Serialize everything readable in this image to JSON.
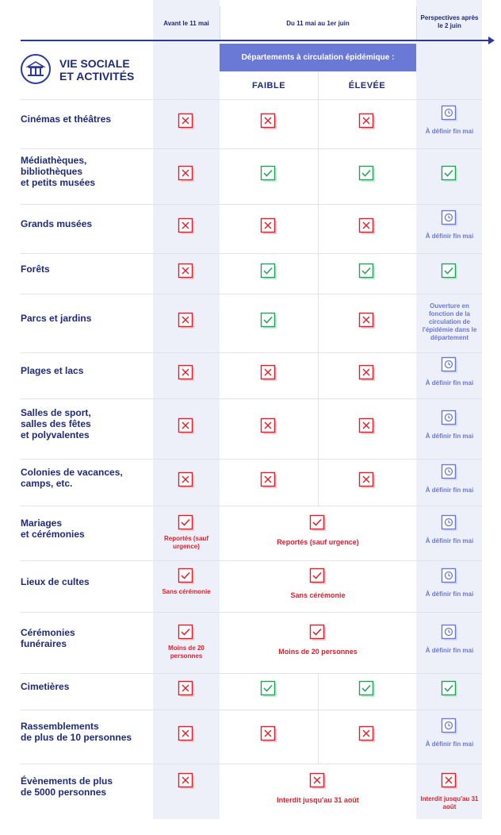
{
  "header": {
    "col_avant": "Avant le 11 mai",
    "col_du": "Du 11 mai au 1er juin",
    "col_persp": "Perspectives après le 2 juin",
    "dept_band": "Départements à circulation épidémique :",
    "faible": "FAIBLE",
    "elevee": "ÉLEVÉE"
  },
  "section": {
    "title_line1": "VIE SOCIALE",
    "title_line2": "ET ACTIVITÉS",
    "icon": "building-icon"
  },
  "colors": {
    "navy": "#1f2a7a",
    "red": "#e11d2b",
    "green": "#1fa35a",
    "lavender": "#6a78d6",
    "col_bg": "#eef0f9"
  },
  "rows": [
    {
      "label": "Cinémas et théâtres",
      "avant": "cross",
      "faible": "cross",
      "elevee": "cross",
      "persp": "clock",
      "persp_note": "À définir fin mai"
    },
    {
      "label": "Médiathèques,\nbibliothèques\net petits musées",
      "avant": "cross",
      "faible": "check",
      "elevee": "check",
      "persp": "check"
    },
    {
      "label": "Grands musées",
      "avant": "cross",
      "faible": "cross",
      "elevee": "cross",
      "persp": "clock",
      "persp_note": "À définir fin mai"
    },
    {
      "label": "Forêts",
      "avant": "cross",
      "faible": "check",
      "elevee": "check",
      "persp": "check"
    },
    {
      "label": "Parcs et jardins",
      "avant": "cross",
      "faible": "check",
      "elevee": "cross",
      "persp": "none",
      "persp_note": "Ouverture en fonction de la circulation de l'épidémie dans le département"
    },
    {
      "label": "Plages et lacs",
      "avant": "cross",
      "faible": "cross",
      "elevee": "cross",
      "persp": "clock",
      "persp_note": "À définir fin mai"
    },
    {
      "label": "Salles de sport,\nsalles des fêtes\net polyvalentes",
      "avant": "cross",
      "faible": "cross",
      "elevee": "cross",
      "persp": "clock",
      "persp_note": "À définir fin mai"
    },
    {
      "label": "Colonies de vacances,\ncamps, etc.",
      "avant": "cross",
      "faible": "cross",
      "elevee": "cross",
      "persp": "clock",
      "persp_note": "À définir fin mai"
    },
    {
      "label": "Mariages\net cérémonies",
      "avant": "redcheck",
      "avant_note": "Reportés (sauf urgence)",
      "mid": "redcheck",
      "mid_note": "Reportés (sauf urgence)",
      "persp": "clock",
      "persp_note": "À définir fin mai"
    },
    {
      "label": "Lieux de cultes",
      "avant": "redcheck",
      "avant_note": "Sans cérémonie",
      "mid": "redcheck",
      "mid_note": "Sans cérémonie",
      "persp": "clock",
      "persp_note": "À définir fin mai"
    },
    {
      "label": "Cérémonies\nfunéraires",
      "avant": "redcheck",
      "avant_note": "Moins de 20 personnes",
      "mid": "redcheck",
      "mid_note": "Moins de 20 personnes",
      "persp": "clock",
      "persp_note": "À définir fin mai"
    },
    {
      "label": "Cimetières",
      "avant": "cross",
      "faible": "check",
      "elevee": "check",
      "persp": "check"
    },
    {
      "label": "Rassemblements\nde plus de 10 personnes",
      "avant": "cross",
      "faible": "cross",
      "elevee": "cross",
      "persp": "clock",
      "persp_note": "À définir fin mai"
    },
    {
      "label": "Évènements de plus\nde 5000 personnes",
      "avant": "cross",
      "mid": "cross",
      "mid_note": "Interdit jusqu'au 31 août",
      "persp": "cross",
      "persp_note": "Interdit jusqu'au 31 août"
    }
  ]
}
